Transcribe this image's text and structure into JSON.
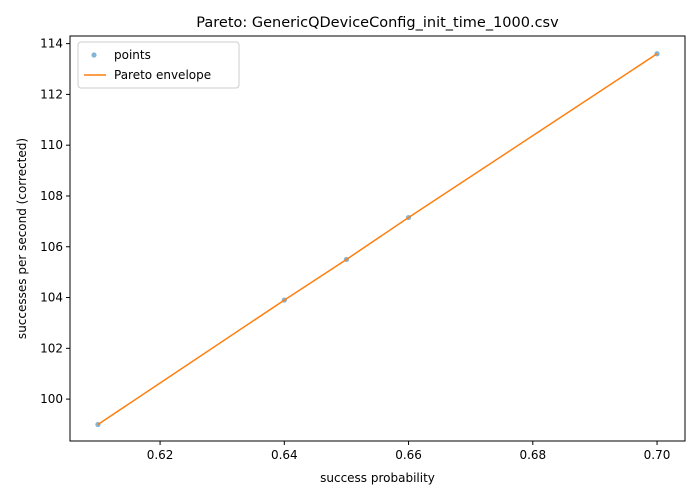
{
  "chart_data": {
    "type": "scatter",
    "title": "Pareto: GenericQDeviceConfig_init_time_1000.csv",
    "xlabel": "success probability",
    "ylabel": "successes per second (corrected)",
    "xlim": [
      0.6055,
      0.7045
    ],
    "ylim": [
      98.35,
      114.3
    ],
    "xticks": [
      0.62,
      0.64,
      0.66,
      0.68,
      0.7
    ],
    "xtick_labels": [
      "0.62",
      "0.64",
      "0.66",
      "0.68",
      "0.70"
    ],
    "yticks": [
      100,
      102,
      104,
      106,
      108,
      110,
      112,
      114
    ],
    "ytick_labels": [
      "100",
      "102",
      "104",
      "106",
      "108",
      "110",
      "112",
      "114"
    ],
    "grid": false,
    "legend_position": "top-left",
    "series": [
      {
        "name": "points",
        "kind": "scatter",
        "color": "#1f77b4",
        "x": [
          0.61,
          0.64,
          0.65,
          0.66,
          0.7
        ],
        "y": [
          99.0,
          103.9,
          105.5,
          107.15,
          113.6
        ]
      },
      {
        "name": "Pareto envelope",
        "kind": "line",
        "color": "#ff7f0e",
        "x": [
          0.61,
          0.64,
          0.65,
          0.66,
          0.7
        ],
        "y": [
          99.0,
          103.9,
          105.5,
          107.15,
          113.6
        ]
      }
    ]
  }
}
